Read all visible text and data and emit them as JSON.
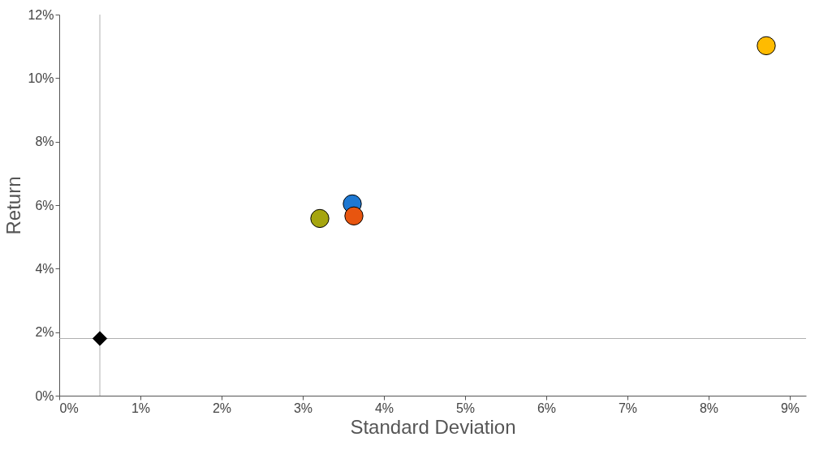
{
  "chart_data": {
    "type": "scatter",
    "xlabel": "Standard Deviation",
    "ylabel": "Return",
    "xlim": [
      0,
      9.2
    ],
    "ylim": [
      0,
      12
    ],
    "xticks": [
      {
        "value": 0,
        "label": "0%"
      },
      {
        "value": 1,
        "label": "1%"
      },
      {
        "value": 2,
        "label": "2%"
      },
      {
        "value": 3,
        "label": "3%"
      },
      {
        "value": 4,
        "label": "4%"
      },
      {
        "value": 5,
        "label": "5%"
      },
      {
        "value": 6,
        "label": "6%"
      },
      {
        "value": 7,
        "label": "7%"
      },
      {
        "value": 8,
        "label": "8%"
      },
      {
        "value": 9,
        "label": "9%"
      }
    ],
    "yticks": [
      {
        "value": 0,
        "label": "0%"
      },
      {
        "value": 2,
        "label": "2%"
      },
      {
        "value": 4,
        "label": "4%"
      },
      {
        "value": 6,
        "label": "6%"
      },
      {
        "value": 8,
        "label": "8%"
      },
      {
        "value": 10,
        "label": "10%"
      },
      {
        "value": 12,
        "label": "12%"
      }
    ],
    "grid": false,
    "ref_lines": [
      {
        "axis": "x",
        "value": 0.5,
        "color": "#b0b0b0"
      },
      {
        "axis": "y",
        "value": 1.8,
        "color": "#b0b0b0"
      }
    ],
    "series": [
      {
        "x": [
          0.5
        ],
        "values": [
          1.8
        ],
        "color": "#000000",
        "marker": "diamond"
      },
      {
        "x": [
          3.21
        ],
        "values": [
          5.58
        ],
        "color": "#a5a50f",
        "marker": "circle"
      },
      {
        "x": [
          3.61
        ],
        "values": [
          6.04
        ],
        "color": "#1e78d2",
        "marker": "circle"
      },
      {
        "x": [
          3.63
        ],
        "values": [
          5.66
        ],
        "color": "#e8550f",
        "marker": "circle"
      },
      {
        "x": [
          8.71
        ],
        "values": [
          11.02
        ],
        "color": "#ffbb00",
        "marker": "circle"
      }
    ]
  }
}
